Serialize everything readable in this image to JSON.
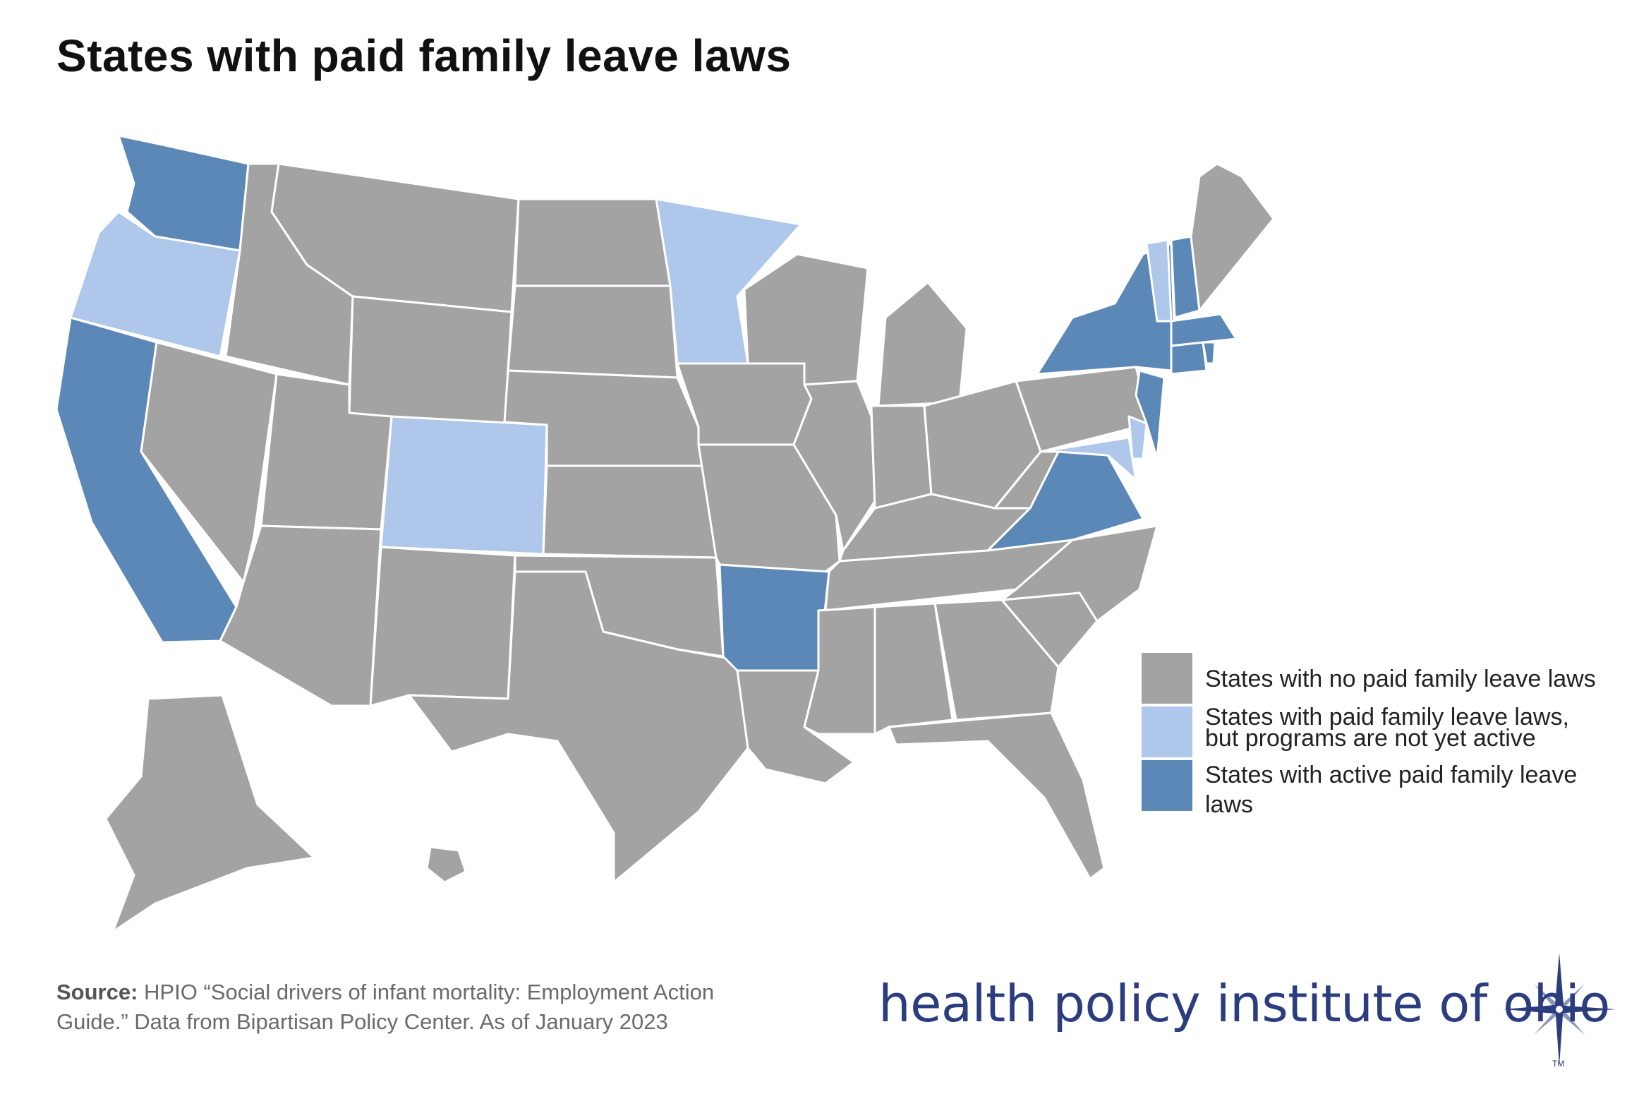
{
  "title": "States with paid family leave laws",
  "legend": {
    "none": {
      "label": "States with no paid family leave laws",
      "color": "#a3a3a3"
    },
    "inactive": {
      "label_line1": "States with paid family leave laws,",
      "label_line2": "but programs are not yet active",
      "color": "#aec7ea"
    },
    "active": {
      "label_line1": "States with active paid family leave",
      "label_line2": "laws",
      "color": "#5b88b7"
    }
  },
  "states": {
    "active": [
      "WA",
      "CA",
      "NY",
      "NJ",
      "MA",
      "CT",
      "RI",
      "NH",
      "VA",
      "AR"
    ],
    "inactive": [
      "OR",
      "CO",
      "MN",
      "MD",
      "DE",
      "VT"
    ],
    "none": [
      "ID",
      "MT",
      "ND",
      "SD",
      "WY",
      "NV",
      "UT",
      "AZ",
      "NM",
      "TX",
      "OK",
      "KS",
      "NE",
      "IA",
      "MO",
      "LA",
      "MS",
      "AL",
      "GA",
      "FL",
      "SC",
      "NC",
      "TN",
      "KY",
      "WV",
      "OH",
      "IN",
      "IL",
      "MI",
      "WI",
      "PA",
      "ME",
      "AK",
      "HI"
    ]
  },
  "source": {
    "label": "Source:",
    "text_line1": "HPIO “Social drivers of infant mortality: Employment Action",
    "text_line2": "Guide.” Data from Bipartisan Policy Center. As of January 2023"
  },
  "logo": {
    "text": "health policy institute of ohio",
    "tm": "TM",
    "color": "#2b3d7e"
  }
}
